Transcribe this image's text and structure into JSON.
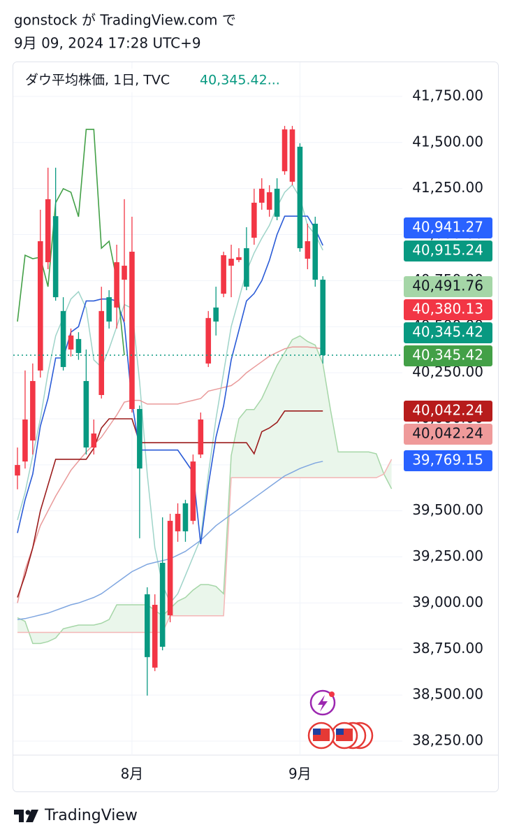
{
  "header": {
    "line1": "gonstock が TradingView.com で",
    "line2": "9月 09, 2024 17:28 UTC+9"
  },
  "footer": {
    "brand": "TradingView"
  },
  "chart_data": {
    "type": "candlestick",
    "legend": {
      "symbol": "ダウ平均株価, 1日, TVC",
      "value": "40,345.42..."
    },
    "categories": [
      null,
      null,
      null,
      null,
      null,
      null,
      null,
      null,
      null,
      null,
      null,
      null,
      null,
      null,
      null,
      "8月",
      null,
      null,
      null,
      null,
      null,
      null,
      null,
      null,
      null,
      null,
      null,
      null,
      null,
      null,
      null,
      null,
      null,
      null,
      null,
      null,
      null,
      "9月",
      null,
      null,
      null,
      null,
      null,
      null,
      null,
      null,
      null,
      null,
      null,
      null
    ],
    "open": [
      39692,
      39768,
      39882,
      40262,
      40850,
      41100,
      40585,
      40376,
      40433,
      40205,
      39844,
      40129,
      40660,
      40604,
      40755,
      40053,
      40053,
      39047,
      38649,
      39218,
      38933,
      39389,
      39541,
      39446,
      39806,
      40300,
      40604,
      40679,
      40831,
      40862,
      40926,
      40983,
      41173,
      41135,
      41249,
      41344,
      41287,
      41477,
      40869,
      41059,
      40755,
      null,
      null,
      null,
      null,
      null,
      null,
      null,
      null,
      null
    ],
    "high": [
      39844,
      40262,
      40300,
      41135,
      41363,
      41363,
      40660,
      40490,
      40470,
      40376,
      39996,
      40717,
      40698,
      40945,
      41192,
      41097,
      40072,
      39085,
      39047,
      39465,
      39484,
      39541,
      39560,
      39806,
      40034,
      40585,
      40717,
      40907,
      40945,
      40926,
      41040,
      41249,
      41306,
      41268,
      41306,
      41590,
      41590,
      41496,
      41059,
      41097,
      40774,
      null,
      null,
      null,
      null,
      null,
      null,
      null,
      null,
      null
    ],
    "low": [
      39617,
      39730,
      39806,
      40224,
      40812,
      40641,
      40262,
      40338,
      40320,
      39806,
      39806,
      40110,
      40490,
      40490,
      40528,
      40034,
      39351,
      38497,
      38630,
      38743,
      38895,
      39332,
      39332,
      39427,
      39787,
      40281,
      40452,
      40660,
      40660,
      40850,
      40698,
      40945,
      41135,
      41097,
      41078,
      41325,
      41268,
      40907,
      40812,
      40717,
      40300,
      null,
      null,
      null,
      null,
      null,
      null,
      null,
      null,
      null
    ],
    "close": [
      39749,
      39996,
      40205,
      40964,
      41192,
      40660,
      40281,
      40452,
      40357,
      39844,
      39920,
      40585,
      40528,
      40850,
      40831,
      40907,
      39730,
      38706,
      38990,
      38762,
      39446,
      39484,
      39389,
      39768,
      39996,
      40547,
      40528,
      40888,
      40869,
      40877,
      40717,
      41173,
      41249,
      41230,
      41097,
      41571,
      41571,
      40926,
      40964,
      40755,
      40345.42,
      null,
      null,
      null,
      null,
      null,
      null,
      null,
      null,
      null
    ],
    "up_color": "#f23645",
    "down_color": "#089981",
    "series": [
      {
        "color": "#9fd4c9",
        "width": 1.5,
        "values": [
          39450,
          39600,
          39800,
          40000,
          40250,
          40450,
          40550,
          40650,
          40690,
          40600,
          40320,
          40280,
          40380,
          40500,
          40620,
          40600,
          40200,
          39700,
          39300,
          39100,
          39000,
          39050,
          39150,
          39250,
          39350,
          39700,
          40000,
          40250,
          40500,
          40650,
          40800,
          40900,
          40980,
          41050,
          41150,
          41230,
          41270,
          41200,
          41050,
          41000,
          40915.24,
          null,
          null,
          null,
          null,
          null,
          null,
          null,
          null,
          null
        ]
      },
      {
        "color": "#e99a9a",
        "width": 1.5,
        "values": [
          39000,
          39180,
          39300,
          39420,
          39500,
          39580,
          39650,
          39720,
          39770,
          39820,
          39860,
          39900,
          39960,
          40020,
          40090,
          40100,
          40100,
          40080,
          40080,
          40080,
          40080,
          40080,
          40090,
          40100,
          40110,
          40150,
          40160,
          40170,
          40180,
          40210,
          40250,
          40280,
          40310,
          40340,
          40360,
          40380,
          40390,
          40390,
          40390,
          40385,
          40380.13,
          null,
          null,
          null,
          null,
          null,
          null,
          null,
          null,
          null
        ]
      },
      {
        "color": "#7fa6e0",
        "width": 1.5,
        "values": [
          38910,
          38915,
          38925,
          38935,
          38945,
          38960,
          38975,
          38990,
          39000,
          39015,
          39030,
          39050,
          39080,
          39110,
          39140,
          39170,
          39190,
          39210,
          39220,
          39230,
          39240,
          39260,
          39280,
          39310,
          39340,
          39380,
          39420,
          39450,
          39480,
          39510,
          39540,
          39570,
          39600,
          39630,
          39660,
          39690,
          39710,
          39730,
          39745,
          39760,
          39769.15,
          null,
          null,
          null,
          null,
          null,
          null,
          null,
          null,
          null
        ]
      },
      {
        "color": "#9b1c1c",
        "width": 1.6,
        "values": [
          39030,
          39150,
          39300,
          39500,
          39640,
          39780,
          39780,
          39780,
          39780,
          39780,
          39840,
          39950,
          40000,
          40000,
          40000,
          40000,
          39870,
          39870,
          39870,
          39870,
          39870,
          39870,
          39870,
          39870,
          39870,
          39870,
          39870,
          39870,
          39870,
          39870,
          39870,
          39810,
          39930,
          39950,
          39980,
          40042.24,
          40042.24,
          40042.24,
          40042.24,
          40042.24,
          40042.24,
          null,
          null,
          null,
          null,
          null,
          null,
          null,
          null,
          null
        ]
      },
      {
        "color": "#2a5bd7",
        "width": 1.6,
        "values": [
          39380,
          39560,
          39700,
          39960,
          40110,
          40330,
          40330,
          40470,
          40500,
          40640,
          40640,
          40650,
          40650,
          40640,
          40520,
          40090,
          39830,
          39830,
          39830,
          39830,
          39830,
          39830,
          39770,
          39710,
          39320,
          39640,
          39900,
          40070,
          40320,
          40480,
          40640,
          40680,
          40750,
          40860,
          41000,
          41100,
          41100,
          41100,
          41100,
          41030,
          40941.27,
          null,
          null,
          null,
          null,
          null,
          null,
          null,
          null,
          null
        ]
      },
      {
        "color": "#43a047",
        "width": 1.6,
        "values": [
          40528,
          40888,
          40869,
          40877,
          40717,
          41173,
          41249,
          41230,
          41097,
          41571,
          41571,
          40926,
          40964,
          40755,
          40345,
          null,
          null,
          null,
          null,
          null,
          null,
          null,
          null,
          null,
          null,
          null,
          null,
          null,
          null,
          null,
          null,
          null,
          null,
          null,
          null,
          null,
          null,
          null,
          null,
          null,
          null,
          null,
          null,
          null,
          null,
          null,
          null,
          null,
          null,
          null
        ]
      }
    ],
    "cloud": {
      "fill": "#e8f5e9",
      "a_color": "#a5d6a7",
      "b_color": "#f4b6b6",
      "a": [
        38920,
        38900,
        38780,
        38780,
        38790,
        38810,
        38860,
        38870,
        38880,
        38880,
        38880,
        38890,
        38910,
        38990,
        38990,
        38990,
        38990,
        38990,
        38960,
        38930,
        38970,
        39010,
        39030,
        39070,
        39100,
        39100,
        39090,
        39050,
        39800,
        40000,
        40050,
        40050,
        40110,
        40200,
        40290,
        40360,
        40430,
        40450,
        40420,
        40400,
        40300,
        40050,
        39820,
        39820,
        39820,
        39820,
        39820,
        39810,
        39700,
        39620
      ],
      "b": [
        38840,
        38840,
        38840,
        38840,
        38840,
        38840,
        38840,
        38840,
        38840,
        38840,
        38840,
        38840,
        38840,
        38840,
        38840,
        38840,
        38840,
        38840,
        38840,
        38840,
        38930,
        38930,
        38930,
        38930,
        38930,
        38930,
        38930,
        38930,
        39680,
        39680,
        39680,
        39680,
        39680,
        39680,
        39680,
        39680,
        39680,
        39680,
        39680,
        39680,
        39680,
        39680,
        39680,
        39680,
        39680,
        39680,
        39680,
        39680,
        39700,
        39780
      ]
    },
    "last_line_color": "#089981",
    "ylim": [
      38174,
      41894
    ],
    "yticks": [
      {
        "value": 38250,
        "label": "38,250.00"
      },
      {
        "value": 38500,
        "label": "38,500.00"
      },
      {
        "value": 38750,
        "label": "38,750.00"
      },
      {
        "value": 39000,
        "label": "39,000.00"
      },
      {
        "value": 39250,
        "label": "39,250.00"
      },
      {
        "value": 39500,
        "label": "39,500.00"
      },
      {
        "value": 39750,
        "label": "39,750.00"
      },
      {
        "value": 40000,
        "label": "40,000.00"
      },
      {
        "value": 40250,
        "label": "40,250.00"
      },
      {
        "value": 40500,
        "label": "40,500.00"
      },
      {
        "value": 40750,
        "label": "40,750.00"
      },
      {
        "value": 41000,
        "label": "41,000.00"
      },
      {
        "value": 41250,
        "label": "41,250.00"
      },
      {
        "value": 41500,
        "label": "41,500.00"
      },
      {
        "value": 41750,
        "label": "41,750.00"
      }
    ],
    "grid": true,
    "price_labels": [
      {
        "label": "40,941.27",
        "color": "#2962ff",
        "text_color": "#ffffff"
      },
      {
        "label": "40,915.24",
        "color": "#089981",
        "text_color": "#ffffff"
      },
      {
        "label": "40,491.76",
        "color": "#a5d6a7",
        "text_color": "#131722"
      },
      {
        "label": "40,380.13",
        "color": "#f23645",
        "text_color": "#ffffff"
      },
      {
        "label": "40,345.42",
        "color": "#089981",
        "text_color": "#ffffff"
      },
      {
        "label": "40,345.42",
        "color": "#43a047",
        "text_color": "#ffffff"
      },
      {
        "label": "40,042.24",
        "color": "#b71c1c",
        "text_color": "#ffffff"
      },
      {
        "label": "40,042.24",
        "color": "#ef9a9a",
        "text_color": "#131722"
      },
      {
        "label": "39,769.15",
        "color": "#2962ff",
        "text_color": "#ffffff"
      }
    ]
  }
}
